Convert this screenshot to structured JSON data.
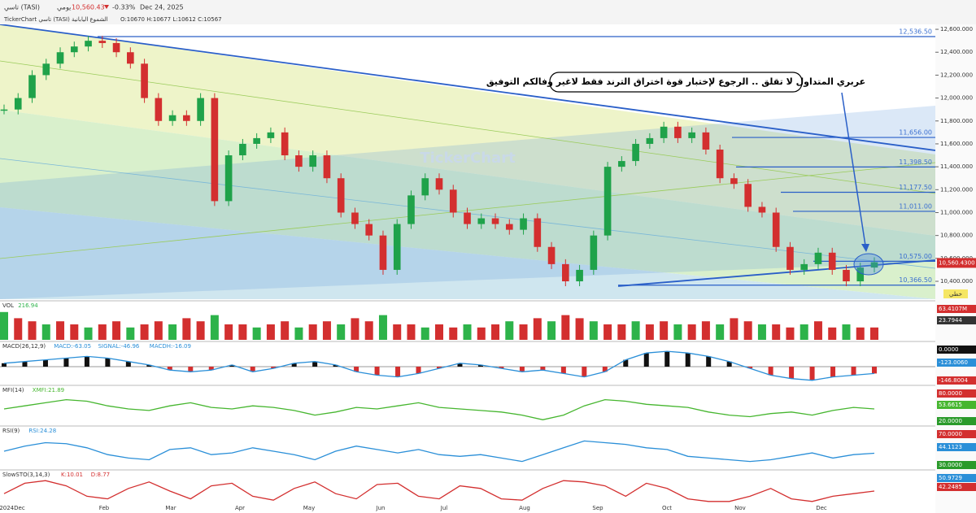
{
  "header": {
    "symbol": "تاسي (TASI)",
    "period": "يومي",
    "price": "10,560.43",
    "change": "-0.33%",
    "date": "Dec 24, 2025",
    "info": "TickerChart تاسي (TASI) الشموع اليابانية",
    "ohlc": "O:10670 H:10677 L:10612 C:10567"
  },
  "annotation": "عربري المتداول لا تقلق .. الرجوع لإختبار قوة اختراق الترند فقط لاغير وفالكم التوفيق",
  "watermark": "TickerChart",
  "price_chart": {
    "ylim": [
      10244,
      12643
    ],
    "yticks": [
      {
        "value": 12600,
        "label": "12,600.000"
      },
      {
        "value": 12400,
        "label": "12,400.000"
      },
      {
        "value": 12200,
        "label": "12,200.000"
      },
      {
        "value": 12000,
        "label": "12,000.000"
      },
      {
        "value": 11800,
        "label": "11,800.000"
      },
      {
        "value": 11600,
        "label": "11,600.000"
      },
      {
        "value": 11400,
        "label": "11,400.000"
      },
      {
        "value": 11200,
        "label": "11,200.000"
      },
      {
        "value": 11000,
        "label": "11,000.000"
      },
      {
        "value": 10800,
        "label": "10,800.000"
      },
      {
        "value": 10600,
        "label": "10,600.000"
      },
      {
        "value": 10400,
        "label": "10,400.000"
      }
    ],
    "levels": [
      {
        "value": 12536.5,
        "label": "12,536.50"
      },
      {
        "value": 11656,
        "label": "11,656.00"
      },
      {
        "value": 11398.5,
        "label": "11,398.50"
      },
      {
        "value": 11177.5,
        "label": "11,177.50"
      },
      {
        "value": 11011,
        "label": "11,011.00"
      },
      {
        "value": 10575,
        "label": "10,575.00"
      },
      {
        "value": 10366.5,
        "label": "10,366.50"
      }
    ],
    "last": {
      "value": 10560.43,
      "label": "10,560.4300"
    },
    "sell_tag": "خطي",
    "closes": [
      11900,
      12000,
      12200,
      12300,
      12400,
      12450,
      12500,
      12480,
      12400,
      12300,
      12000,
      11800,
      11850,
      11800,
      12000,
      11100,
      11500,
      11600,
      11650,
      11700,
      11500,
      11400,
      11500,
      11300,
      11000,
      10900,
      10800,
      10500,
      10900,
      11150,
      11300,
      11200,
      11000,
      10900,
      10950,
      10900,
      10850,
      10950,
      10700,
      10550,
      10400,
      10500,
      10800,
      11400,
      11450,
      11600,
      11650,
      11750,
      11650,
      11700,
      11550,
      11300,
      11250,
      11050,
      11000,
      10700,
      10500,
      10550,
      10650,
      10500,
      10400,
      10520,
      10567
    ],
    "months": [
      "2024Dec",
      "Feb",
      "Mar",
      "Apr",
      "May",
      "Jun",
      "Jul",
      "Aug",
      "Sep",
      "Oct",
      "Nov",
      "Dec"
    ]
  },
  "volume": {
    "label": "VOL",
    "reading": "216.94",
    "tags": [
      "63.4107M",
      "23.7944"
    ],
    "values": [
      9,
      7,
      6,
      5,
      6,
      5,
      4,
      5,
      6,
      4,
      5,
      6,
      5,
      7,
      6,
      8,
      5,
      5,
      4,
      5,
      6,
      4,
      5,
      6,
      5,
      7,
      6,
      8,
      5,
      5,
      4,
      5,
      4,
      5,
      4,
      5,
      6,
      5,
      7,
      6,
      8,
      7,
      6,
      5,
      5,
      6,
      5,
      6,
      5,
      5,
      6,
      5,
      7,
      6,
      5,
      5,
      4,
      5,
      6,
      4,
      5,
      4,
      4
    ]
  },
  "macd": {
    "label": "MACD(26,12,9)",
    "macd": "MACD:-63.05",
    "signal": "SIGNAL:-46.96",
    "hist": "MACDH:-16.09",
    "tags": [
      "0.0000",
      "-123.0060",
      "-146.8004"
    ],
    "values": [
      0.2,
      0.3,
      0.4,
      0.5,
      0.6,
      0.5,
      0.3,
      0.1,
      -0.2,
      -0.3,
      -0.2,
      0.1,
      -0.3,
      -0.1,
      0.2,
      0.3,
      0.1,
      -0.3,
      -0.5,
      -0.6,
      -0.4,
      -0.1,
      0.2,
      0.1,
      -0.1,
      -0.3,
      -0.2,
      -0.4,
      -0.6,
      -0.3,
      0.4,
      0.8,
      0.9,
      0.8,
      0.6,
      0.3,
      -0.1,
      -0.5,
      -0.7,
      -0.8,
      -0.6,
      -0.5,
      -0.4
    ]
  },
  "mfi": {
    "label": "MFI(14)",
    "reading": "XMFI:21.89",
    "tags": [
      "80.0000",
      "53.6615",
      "20.0000"
    ],
    "values": [
      50,
      60,
      70,
      80,
      75,
      60,
      50,
      45,
      60,
      70,
      55,
      50,
      60,
      55,
      45,
      30,
      40,
      55,
      50,
      60,
      70,
      55,
      50,
      45,
      40,
      30,
      15,
      30,
      60,
      80,
      75,
      65,
      60,
      55,
      40,
      30,
      25,
      35,
      40,
      30,
      45,
      55,
      50
    ]
  },
  "rsi": {
    "label": "RSI(9)",
    "reading": "RSI:24.28",
    "tags": [
      "70.0000",
      "44.1123",
      "30.0000"
    ],
    "values": [
      50,
      65,
      75,
      72,
      60,
      40,
      30,
      25,
      55,
      60,
      40,
      45,
      60,
      50,
      40,
      25,
      50,
      65,
      55,
      45,
      55,
      40,
      35,
      40,
      30,
      20,
      40,
      60,
      80,
      75,
      70,
      60,
      55,
      35,
      30,
      25,
      20,
      25,
      35,
      45,
      30,
      40,
      44
    ]
  },
  "stoch": {
    "label": "SlowSTO(3,14,3)",
    "k": "K:10.01",
    "d": "D:8.77",
    "tags": [
      "50.9729",
      "42.2485"
    ],
    "values": [
      40,
      80,
      90,
      70,
      30,
      20,
      60,
      85,
      50,
      20,
      70,
      80,
      30,
      15,
      60,
      85,
      40,
      20,
      75,
      80,
      30,
      20,
      70,
      60,
      20,
      15,
      60,
      90,
      85,
      70,
      30,
      80,
      60,
      20,
      10,
      10,
      30,
      60,
      20,
      10,
      30,
      40,
      50
    ]
  }
}
